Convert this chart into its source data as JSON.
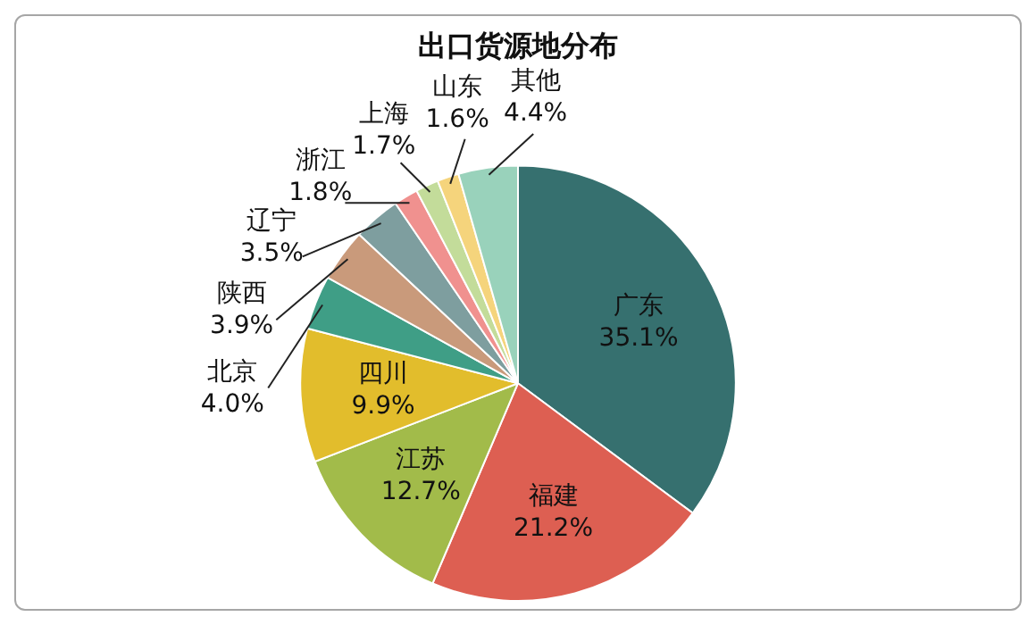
{
  "chart_data": {
    "type": "pie",
    "title": "出口货源地分布",
    "categories": [
      "广东",
      "福建",
      "江苏",
      "四川",
      "北京",
      "陕西",
      "辽宁",
      "浙江",
      "上海",
      "山东",
      "其他"
    ],
    "values": [
      35.1,
      21.2,
      12.7,
      9.9,
      4.0,
      3.9,
      3.5,
      1.8,
      1.7,
      1.6,
      4.4
    ],
    "colors": [
      "#36706f",
      "#dd5f52",
      "#a2bb4a",
      "#e2bd2c",
      "#3f9e86",
      "#c99a7b",
      "#7e9e9f",
      "#f0918f",
      "#c3dc9a",
      "#f5d47c",
      "#99d2bb"
    ],
    "value_labels": [
      "35.1%",
      "21.2%",
      "12.7%",
      "9.9%",
      "4.0%",
      "3.9%",
      "3.5%",
      "1.8%",
      "1.7%",
      "1.6%",
      "4.4%"
    ]
  }
}
